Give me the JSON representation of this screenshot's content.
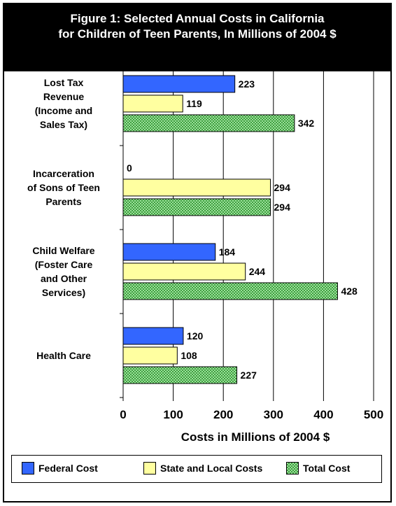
{
  "title": {
    "line1": "Figure 1: Selected Annual Costs in California",
    "line2": "for Children of Teen Parents, In Millions of 2004 $"
  },
  "colors": {
    "federal": "#3366ff",
    "state_local": "#ffffa0",
    "total": "#6fcf6f"
  },
  "chart_data": {
    "type": "bar",
    "orientation": "horizontal",
    "categories": [
      [
        "Lost Tax",
        "Revenue",
        "(Income and",
        "Sales Tax)"
      ],
      [
        "Incarceration",
        "of Sons of Teen",
        "Parents"
      ],
      [
        "Child Welfare",
        "(Foster Care",
        "and Other",
        "Services)"
      ],
      [
        "Health Care"
      ]
    ],
    "series": [
      {
        "name": "Federal Cost",
        "values": [
          223,
          0,
          184,
          120
        ],
        "color": "#3366ff"
      },
      {
        "name": "State and Local Costs",
        "values": [
          119,
          294,
          244,
          108
        ],
        "color": "#ffffa0"
      },
      {
        "name": "Total Cost",
        "values": [
          342,
          294,
          428,
          227
        ],
        "color": "#6fcf6f"
      }
    ],
    "xlabel": "Costs in Millions of 2004 $",
    "xlim": [
      0,
      500
    ],
    "xticks": [
      "0",
      "100",
      "200",
      "300",
      "400",
      "500"
    ],
    "grid": true,
    "legend_position": "bottom"
  }
}
